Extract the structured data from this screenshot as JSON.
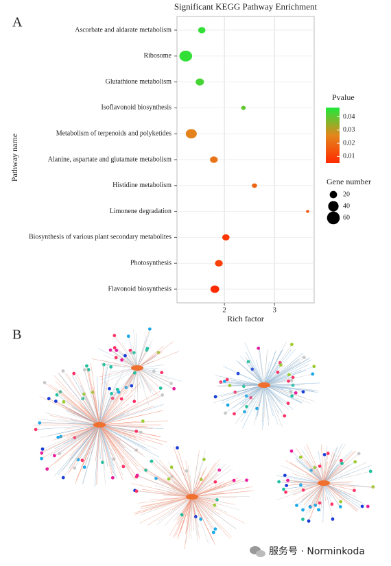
{
  "panel_a_label": "A",
  "panel_b_label": "B",
  "watermark": "服务号 · Norminkoda",
  "chart_data": {
    "type": "bubble",
    "title": "Significant KEGG Pathway Enrichment",
    "x_label": "Rich factor",
    "y_label": "Pathway name",
    "categories": [
      "Ascorbate and aldarate metabolism",
      "Ribosome",
      "Glutathione metabolism",
      "Isoflavonoid biosynthesis",
      "Metabolism of terpenoids and polyketides",
      "Alanine, aspartate and glutamate metabolism",
      "Histidine metabolism",
      "Limonene degradation",
      "Biosynthesis of various plant secondary metabolites",
      "Photosynthesis",
      "Flavonoid biosynthesis"
    ],
    "rich_factor": [
      1.55,
      1.23,
      1.51,
      2.38,
      1.34,
      1.79,
      2.6,
      3.66,
      2.03,
      1.89,
      1.81
    ],
    "pvalue": [
      0.045,
      0.045,
      0.043,
      0.04,
      0.025,
      0.022,
      0.018,
      0.015,
      0.008,
      0.01,
      0.005
    ],
    "gene_number": [
      20,
      60,
      25,
      8,
      45,
      22,
      10,
      4,
      20,
      22,
      28
    ],
    "xlim": [
      1.055,
      3.79
    ],
    "xticks": [
      2,
      3
    ],
    "grid": true,
    "color_legend": {
      "title": "Pvalue",
      "lim": [
        0.005,
        0.047
      ],
      "ticks": [
        0.04,
        0.03,
        0.02,
        0.01
      ],
      "colors": [
        "#ff2a00",
        "#e3861c",
        "#1ee83a"
      ]
    },
    "size_legend": {
      "title": "Gene number",
      "values": [
        20,
        40,
        60
      ],
      "color": "#000000"
    }
  }
}
